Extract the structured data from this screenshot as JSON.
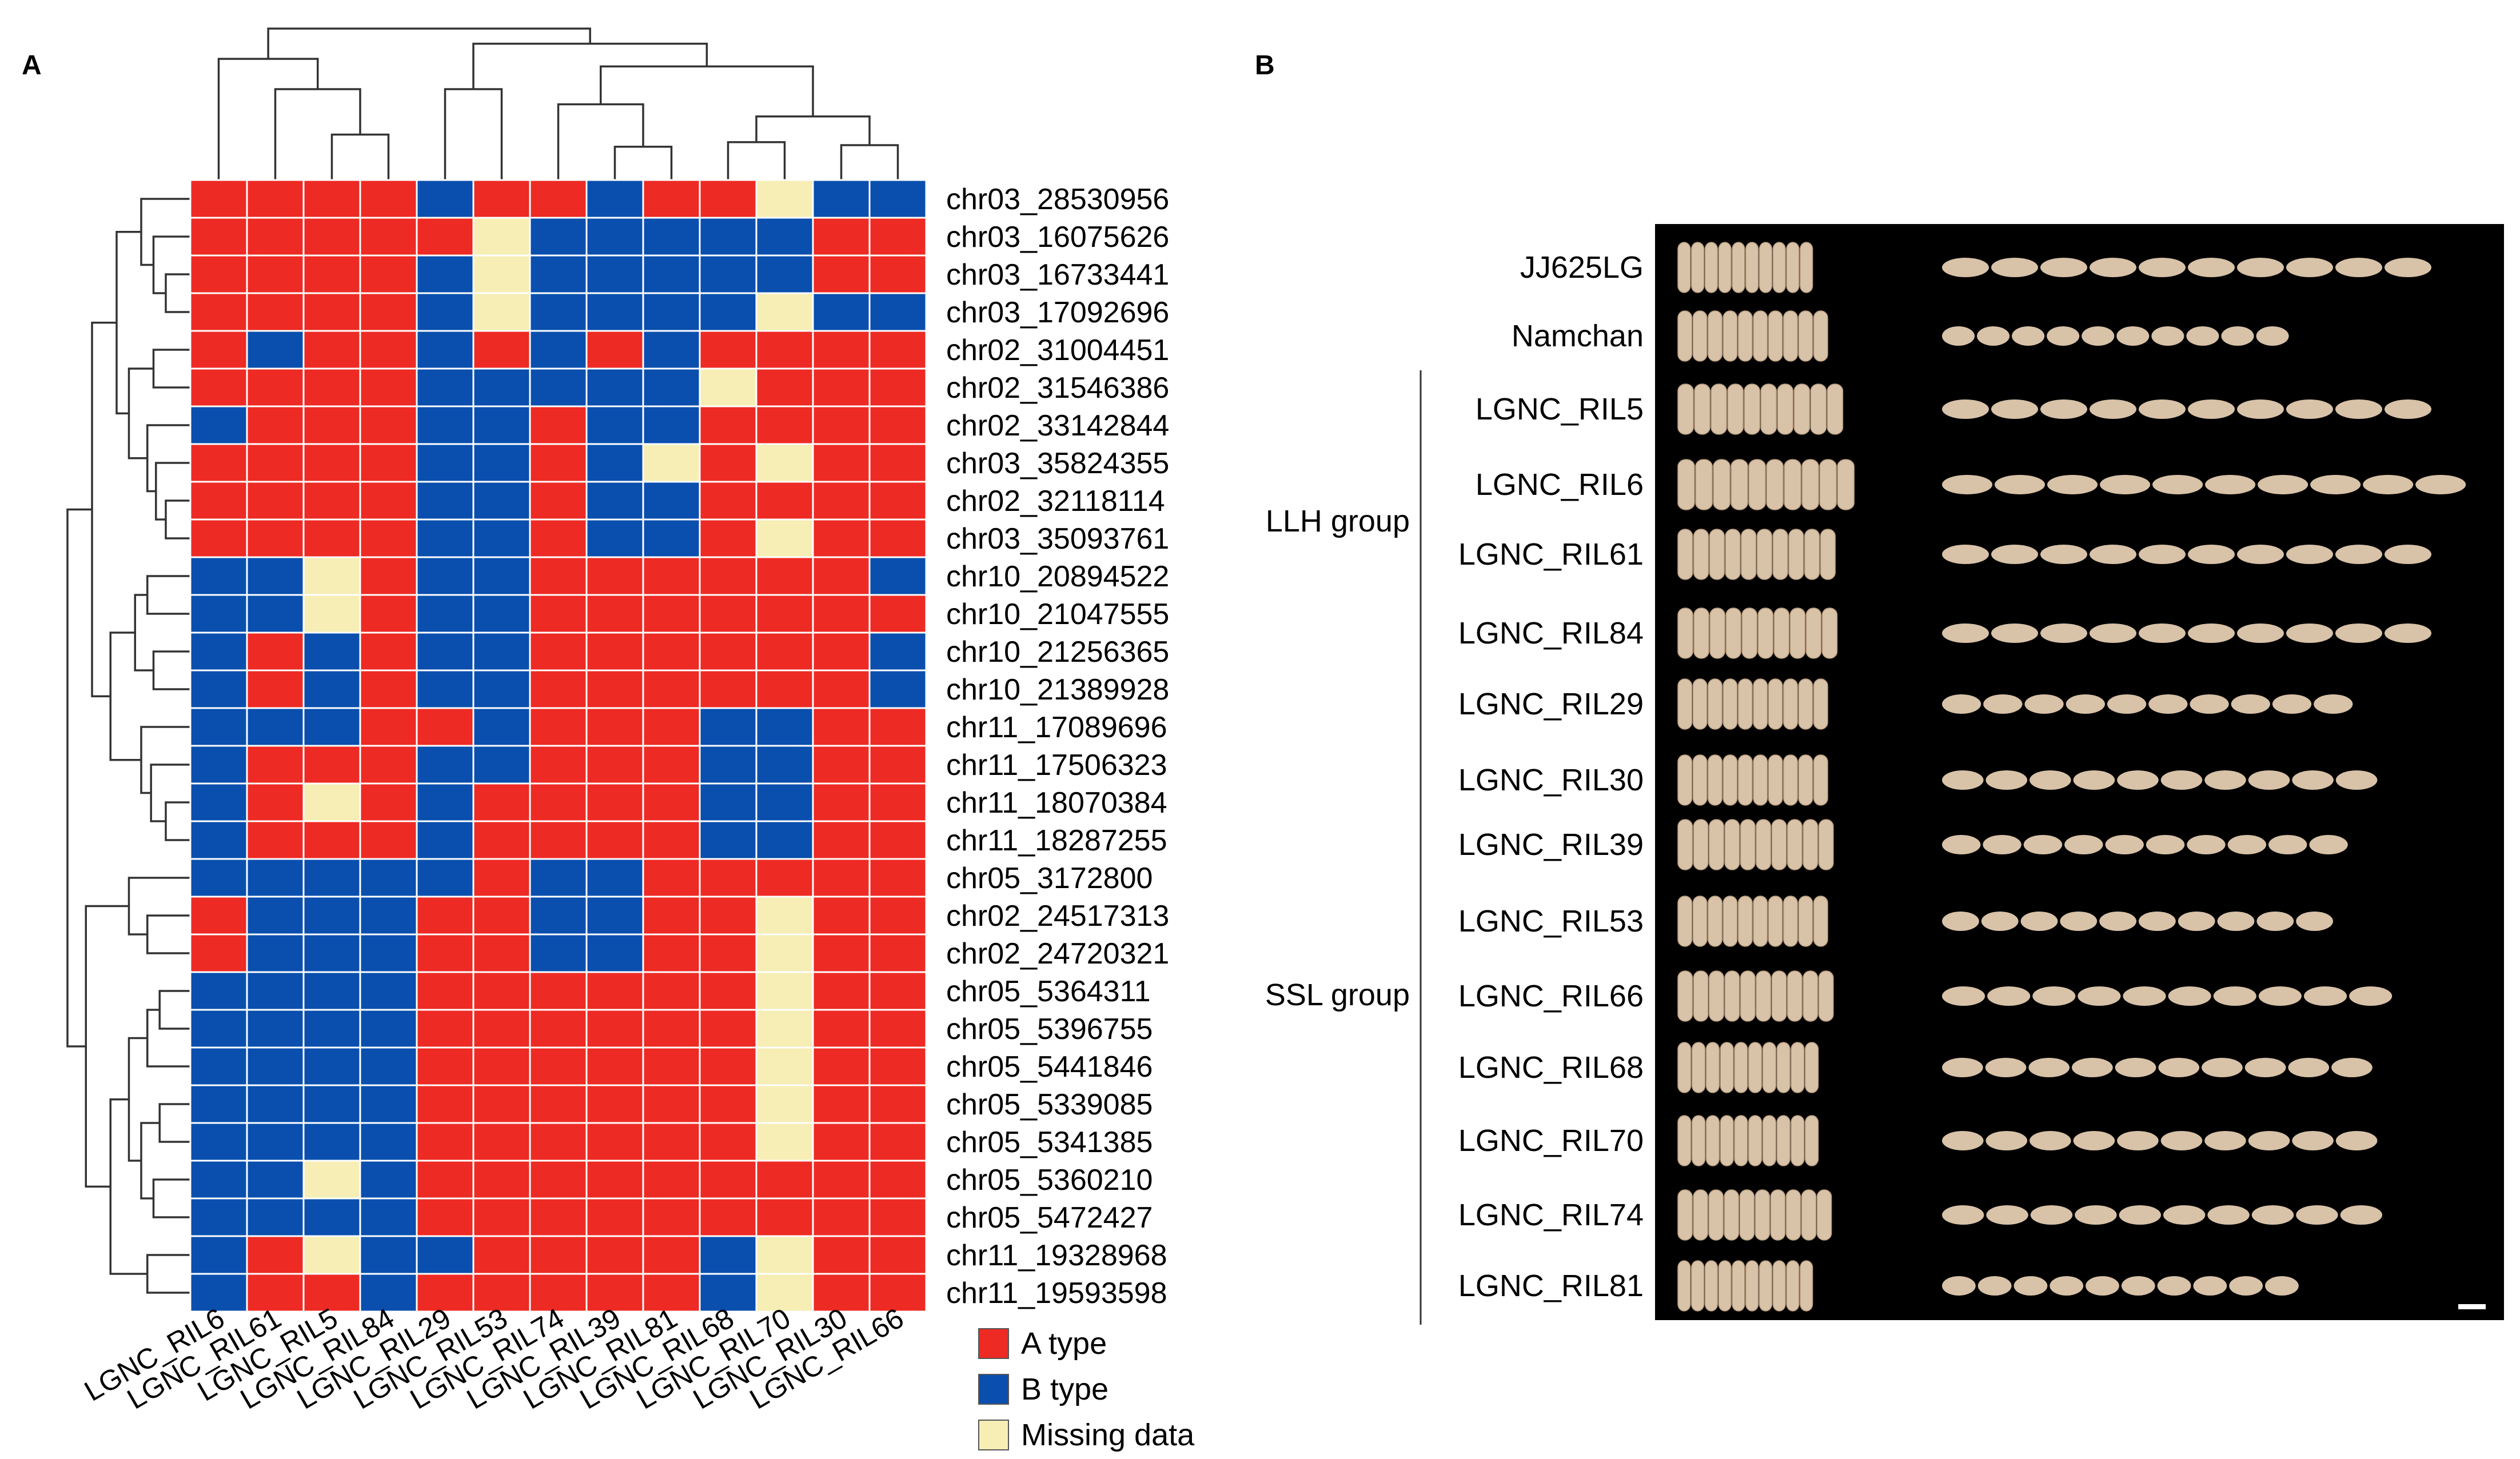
{
  "panels": {
    "a_label": "A",
    "b_label": "B"
  },
  "legend": [
    {
      "label": "A type",
      "code": "A",
      "color": "#ee2a24"
    },
    {
      "label": "B type",
      "code": "B",
      "color": "#0a4fae"
    },
    {
      "label": "Missing data",
      "code": "M",
      "color": "#f6eeb5"
    }
  ],
  "heatmap": {
    "columns": [
      "LGNC_RIL6",
      "LGNC_RIL61",
      "LGNC_RIL5",
      "LGNC_RIL84",
      "LGNC_RIL29",
      "LGNC_RIL53",
      "LGNC_RIL74",
      "LGNC_RIL39",
      "LGNC_RIL81",
      "LGNC_RIL68",
      "LGNC_RIL70",
      "LGNC_RIL30",
      "LGNC_RIL66"
    ],
    "rows": [
      {
        "marker": "chr03_28530956",
        "genotypes": [
          "A",
          "A",
          "A",
          "A",
          "B",
          "A",
          "A",
          "B",
          "A",
          "A",
          "M",
          "B",
          "B"
        ]
      },
      {
        "marker": "chr03_16075626",
        "genotypes": [
          "A",
          "A",
          "A",
          "A",
          "A",
          "M",
          "B",
          "B",
          "B",
          "B",
          "B",
          "A",
          "A"
        ]
      },
      {
        "marker": "chr03_16733441",
        "genotypes": [
          "A",
          "A",
          "A",
          "A",
          "B",
          "M",
          "B",
          "B",
          "B",
          "B",
          "B",
          "A",
          "A"
        ]
      },
      {
        "marker": "chr03_17092696",
        "genotypes": [
          "A",
          "A",
          "A",
          "A",
          "B",
          "M",
          "B",
          "B",
          "B",
          "B",
          "M",
          "B",
          "B"
        ]
      },
      {
        "marker": "chr02_31004451",
        "genotypes": [
          "A",
          "B",
          "A",
          "A",
          "B",
          "A",
          "B",
          "A",
          "B",
          "A",
          "A",
          "A",
          "A"
        ]
      },
      {
        "marker": "chr02_31546386",
        "genotypes": [
          "A",
          "A",
          "A",
          "A",
          "B",
          "B",
          "B",
          "B",
          "B",
          "M",
          "A",
          "A",
          "A"
        ]
      },
      {
        "marker": "chr02_33142844",
        "genotypes": [
          "B",
          "A",
          "A",
          "A",
          "B",
          "B",
          "A",
          "B",
          "B",
          "A",
          "A",
          "A",
          "A"
        ]
      },
      {
        "marker": "chr03_35824355",
        "genotypes": [
          "A",
          "A",
          "A",
          "A",
          "B",
          "B",
          "A",
          "B",
          "M",
          "A",
          "M",
          "A",
          "A"
        ]
      },
      {
        "marker": "chr02_32118114",
        "genotypes": [
          "A",
          "A",
          "A",
          "A",
          "B",
          "B",
          "A",
          "B",
          "B",
          "A",
          "A",
          "A",
          "A"
        ]
      },
      {
        "marker": "chr03_35093761",
        "genotypes": [
          "A",
          "A",
          "A",
          "A",
          "B",
          "B",
          "A",
          "B",
          "B",
          "A",
          "M",
          "A",
          "A"
        ]
      },
      {
        "marker": "chr10_20894522",
        "genotypes": [
          "B",
          "B",
          "M",
          "A",
          "B",
          "B",
          "A",
          "A",
          "A",
          "A",
          "A",
          "A",
          "B"
        ]
      },
      {
        "marker": "chr10_21047555",
        "genotypes": [
          "B",
          "B",
          "M",
          "A",
          "B",
          "B",
          "A",
          "A",
          "A",
          "A",
          "A",
          "A",
          "A"
        ]
      },
      {
        "marker": "chr10_21256365",
        "genotypes": [
          "B",
          "A",
          "B",
          "A",
          "B",
          "B",
          "A",
          "A",
          "A",
          "A",
          "A",
          "A",
          "B"
        ]
      },
      {
        "marker": "chr10_21389928",
        "genotypes": [
          "B",
          "A",
          "B",
          "A",
          "B",
          "B",
          "A",
          "A",
          "A",
          "A",
          "A",
          "A",
          "B"
        ]
      },
      {
        "marker": "chr11_17089696",
        "genotypes": [
          "B",
          "B",
          "B",
          "A",
          "A",
          "B",
          "A",
          "A",
          "A",
          "B",
          "B",
          "A",
          "A"
        ]
      },
      {
        "marker": "chr11_17506323",
        "genotypes": [
          "B",
          "A",
          "A",
          "A",
          "B",
          "B",
          "A",
          "A",
          "A",
          "B",
          "B",
          "A",
          "A"
        ]
      },
      {
        "marker": "chr11_18070384",
        "genotypes": [
          "B",
          "A",
          "M",
          "A",
          "B",
          "A",
          "A",
          "A",
          "A",
          "B",
          "B",
          "A",
          "A"
        ]
      },
      {
        "marker": "chr11_18287255",
        "genotypes": [
          "B",
          "A",
          "A",
          "A",
          "B",
          "A",
          "A",
          "A",
          "A",
          "B",
          "B",
          "A",
          "A"
        ]
      },
      {
        "marker": "chr05_3172800",
        "genotypes": [
          "B",
          "B",
          "B",
          "B",
          "B",
          "A",
          "B",
          "B",
          "A",
          "A",
          "A",
          "A",
          "A"
        ]
      },
      {
        "marker": "chr02_24517313",
        "genotypes": [
          "A",
          "B",
          "B",
          "B",
          "A",
          "A",
          "B",
          "B",
          "A",
          "A",
          "M",
          "A",
          "A"
        ]
      },
      {
        "marker": "chr02_24720321",
        "genotypes": [
          "A",
          "B",
          "B",
          "B",
          "A",
          "A",
          "B",
          "B",
          "A",
          "A",
          "M",
          "A",
          "A"
        ]
      },
      {
        "marker": "chr05_5364311",
        "genotypes": [
          "B",
          "B",
          "B",
          "B",
          "A",
          "A",
          "A",
          "A",
          "A",
          "A",
          "M",
          "A",
          "A"
        ]
      },
      {
        "marker": "chr05_5396755",
        "genotypes": [
          "B",
          "B",
          "B",
          "B",
          "A",
          "A",
          "A",
          "A",
          "A",
          "A",
          "M",
          "A",
          "A"
        ]
      },
      {
        "marker": "chr05_5441846",
        "genotypes": [
          "B",
          "B",
          "B",
          "B",
          "A",
          "A",
          "A",
          "A",
          "A",
          "A",
          "M",
          "A",
          "A"
        ]
      },
      {
        "marker": "chr05_5339085",
        "genotypes": [
          "B",
          "B",
          "B",
          "B",
          "A",
          "A",
          "A",
          "A",
          "A",
          "A",
          "M",
          "A",
          "A"
        ]
      },
      {
        "marker": "chr05_5341385",
        "genotypes": [
          "B",
          "B",
          "B",
          "B",
          "A",
          "A",
          "A",
          "A",
          "A",
          "A",
          "M",
          "A",
          "A"
        ]
      },
      {
        "marker": "chr05_5360210",
        "genotypes": [
          "B",
          "B",
          "M",
          "B",
          "A",
          "A",
          "A",
          "A",
          "A",
          "A",
          "A",
          "A",
          "A"
        ]
      },
      {
        "marker": "chr05_5472427",
        "genotypes": [
          "B",
          "B",
          "B",
          "B",
          "A",
          "A",
          "A",
          "A",
          "A",
          "A",
          "A",
          "A",
          "A"
        ]
      },
      {
        "marker": "chr11_19328968",
        "genotypes": [
          "B",
          "A",
          "M",
          "B",
          "B",
          "A",
          "A",
          "A",
          "A",
          "B",
          "M",
          "A",
          "A"
        ]
      },
      {
        "marker": "chr11_19593598",
        "genotypes": [
          "B",
          "A",
          "A",
          "B",
          "A",
          "A",
          "A",
          "A",
          "A",
          "B",
          "M",
          "A",
          "A"
        ]
      }
    ]
  },
  "panel_b": {
    "background": "#000000",
    "grain_color": "#d8c2a8",
    "groups": [
      {
        "label": "LLH group",
        "start": 2,
        "end": 5
      },
      {
        "label": "SSL group",
        "start": 6,
        "end": 14
      }
    ],
    "samples": [
      {
        "label": "JJ625LG",
        "stack_width": 0.72,
        "row_length": 1.0,
        "grains": 10
      },
      {
        "label": "Namchan",
        "stack_width": 0.8,
        "row_length": 0.71,
        "grains": 10
      },
      {
        "label": "LGNC_RIL5",
        "stack_width": 0.88,
        "row_length": 1.0,
        "grains": 10
      },
      {
        "label": "LGNC_RIL6",
        "stack_width": 0.94,
        "row_length": 1.07,
        "grains": 10
      },
      {
        "label": "LGNC_RIL61",
        "stack_width": 0.84,
        "row_length": 1.0,
        "grains": 10
      },
      {
        "label": "LGNC_RIL84",
        "stack_width": 0.85,
        "row_length": 1.0,
        "grains": 10
      },
      {
        "label": "LGNC_RIL29",
        "stack_width": 0.8,
        "row_length": 0.84,
        "grains": 10
      },
      {
        "label": "LGNC_RIL30",
        "stack_width": 0.8,
        "row_length": 0.89,
        "grains": 10
      },
      {
        "label": "LGNC_RIL39",
        "stack_width": 0.83,
        "row_length": 0.83,
        "grains": 10
      },
      {
        "label": "LGNC_RIL53",
        "stack_width": 0.8,
        "row_length": 0.8,
        "grains": 10
      },
      {
        "label": "LGNC_RIL66",
        "stack_width": 0.83,
        "row_length": 0.92,
        "grains": 10
      },
      {
        "label": "LGNC_RIL68",
        "stack_width": 0.75,
        "row_length": 0.88,
        "grains": 10
      },
      {
        "label": "LGNC_RIL70",
        "stack_width": 0.75,
        "row_length": 0.89,
        "grains": 10
      },
      {
        "label": "LGNC_RIL74",
        "stack_width": 0.82,
        "row_length": 0.9,
        "grains": 10
      },
      {
        "label": "LGNC_RIL81",
        "stack_width": 0.72,
        "row_length": 0.73,
        "grains": 10
      }
    ]
  }
}
